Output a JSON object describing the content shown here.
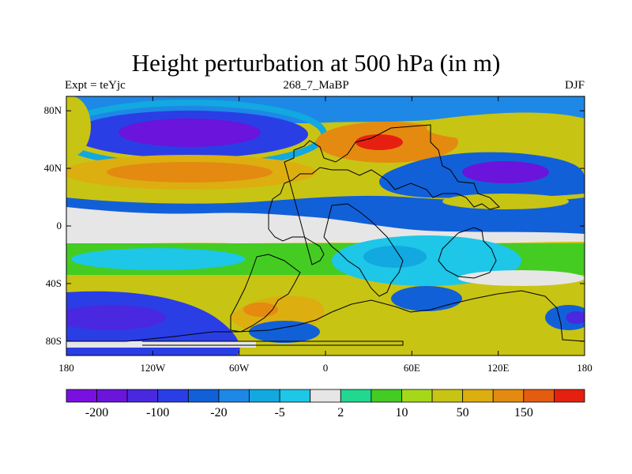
{
  "chart_data": {
    "type": "heatmap",
    "title": "Height perturbation at 500 hPa (in m)",
    "subtitle_left": "Expt = teYjc",
    "subtitle_center": "268_7_MaBP",
    "subtitle_right": "DJF",
    "x_range": [
      -180,
      180
    ],
    "y_range": [
      -90,
      90
    ],
    "x_ticks": [
      {
        "value": -180,
        "label": "180"
      },
      {
        "value": -120,
        "label": "120W"
      },
      {
        "value": -60,
        "label": "60W"
      },
      {
        "value": 0,
        "label": "0"
      },
      {
        "value": 60,
        "label": "60E"
      },
      {
        "value": 120,
        "label": "120E"
      },
      {
        "value": 180,
        "label": "180"
      }
    ],
    "y_ticks": [
      {
        "value": 80,
        "label": "80N"
      },
      {
        "value": 40,
        "label": "40N"
      },
      {
        "value": 0,
        "label": "0"
      },
      {
        "value": -40,
        "label": "40S"
      },
      {
        "value": -80,
        "label": "80S"
      }
    ],
    "colorbar": {
      "colors": [
        "#7a10e0",
        "#6a14dc",
        "#4a28e0",
        "#2a3ee6",
        "#1160d8",
        "#1d88e6",
        "#12a8e0",
        "#1ec6e8",
        "#e6e6e6",
        "#22d890",
        "#44cc22",
        "#a6d81a",
        "#c8c414",
        "#dcae10",
        "#e48a10",
        "#e45c10",
        "#e62010"
      ],
      "labels": [
        {
          "boundary": 1,
          "text": "-200"
        },
        {
          "boundary": 3,
          "text": "-100"
        },
        {
          "boundary": 5,
          "text": "-20"
        },
        {
          "boundary": 7,
          "text": "-5"
        },
        {
          "boundary": 9,
          "text": "2"
        },
        {
          "boundary": 11,
          "text": "10"
        },
        {
          "boundary": 13,
          "text": "50"
        },
        {
          "boundary": 15,
          "text": "150"
        }
      ]
    }
  }
}
